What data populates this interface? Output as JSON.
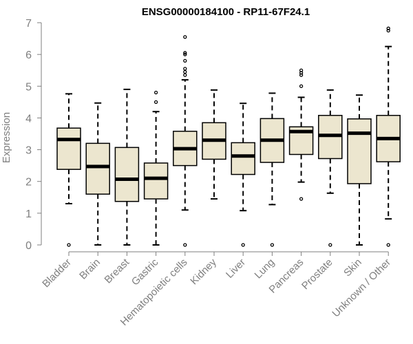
{
  "chart_data": {
    "type": "box",
    "title": "ENSG00000184100 - RP11-67F24.1",
    "xlabel": "",
    "ylabel": "Expression",
    "ylim": [
      0,
      7
    ],
    "yticks": [
      0,
      1,
      2,
      3,
      4,
      5,
      6,
      7
    ],
    "categories": [
      "Bladder",
      "Brain",
      "Breast",
      "Gastric",
      "Hematopoietic cells",
      "Kidney",
      "Liver",
      "Lung",
      "Pancreas",
      "Prostate",
      "Skin",
      "Unknown / Other"
    ],
    "boxes": [
      {
        "whisker_low": 1.3,
        "q1": 2.38,
        "median": 3.32,
        "q3": 3.68,
        "whisker_high": 4.76,
        "outliers": [
          0
        ]
      },
      {
        "whisker_low": 0,
        "q1": 1.6,
        "median": 2.47,
        "q3": 3.2,
        "whisker_high": 4.47,
        "outliers": []
      },
      {
        "whisker_low": 0,
        "q1": 1.37,
        "median": 2.07,
        "q3": 3.07,
        "whisker_high": 4.9,
        "outliers": []
      },
      {
        "whisker_low": 0,
        "q1": 1.45,
        "median": 2.1,
        "q3": 2.58,
        "whisker_high": 4.2,
        "outliers": [
          4.5,
          4.8
        ]
      },
      {
        "whisker_low": 1.1,
        "q1": 2.5,
        "median": 3.03,
        "q3": 3.58,
        "whisker_high": 5.2,
        "outliers": [
          0,
          5.35,
          5.45,
          5.55,
          5.8,
          6.0,
          6.05,
          6.55
        ]
      },
      {
        "whisker_low": 1.45,
        "q1": 2.7,
        "median": 3.3,
        "q3": 3.85,
        "whisker_high": 4.88,
        "outliers": []
      },
      {
        "whisker_low": 1.08,
        "q1": 2.22,
        "median": 2.8,
        "q3": 3.22,
        "whisker_high": 4.46,
        "outliers": [
          0
        ]
      },
      {
        "whisker_low": 1.27,
        "q1": 2.6,
        "median": 3.3,
        "q3": 3.98,
        "whisker_high": 4.78,
        "outliers": [
          0
        ]
      },
      {
        "whisker_low": 1.98,
        "q1": 2.85,
        "median": 3.57,
        "q3": 3.72,
        "whisker_high": 4.65,
        "outliers": [
          1.45,
          5.0,
          5.35,
          5.42,
          5.5
        ]
      },
      {
        "whisker_low": 1.63,
        "q1": 2.72,
        "median": 3.45,
        "q3": 4.08,
        "whisker_high": 4.88,
        "outliers": [
          0
        ]
      },
      {
        "whisker_low": 0,
        "q1": 1.93,
        "median": 3.52,
        "q3": 3.97,
        "whisker_high": 4.72,
        "outliers": []
      },
      {
        "whisker_low": 0.82,
        "q1": 2.62,
        "median": 3.35,
        "q3": 4.08,
        "whisker_high": 6.25,
        "outliers": [
          0,
          6.75,
          6.82
        ]
      }
    ],
    "colors": {
      "box_fill": "#ece6cf",
      "box_stroke": "#000000",
      "axis": "#7f7f7f",
      "tick_label": "#7f7f7f",
      "title": "#000000"
    }
  }
}
